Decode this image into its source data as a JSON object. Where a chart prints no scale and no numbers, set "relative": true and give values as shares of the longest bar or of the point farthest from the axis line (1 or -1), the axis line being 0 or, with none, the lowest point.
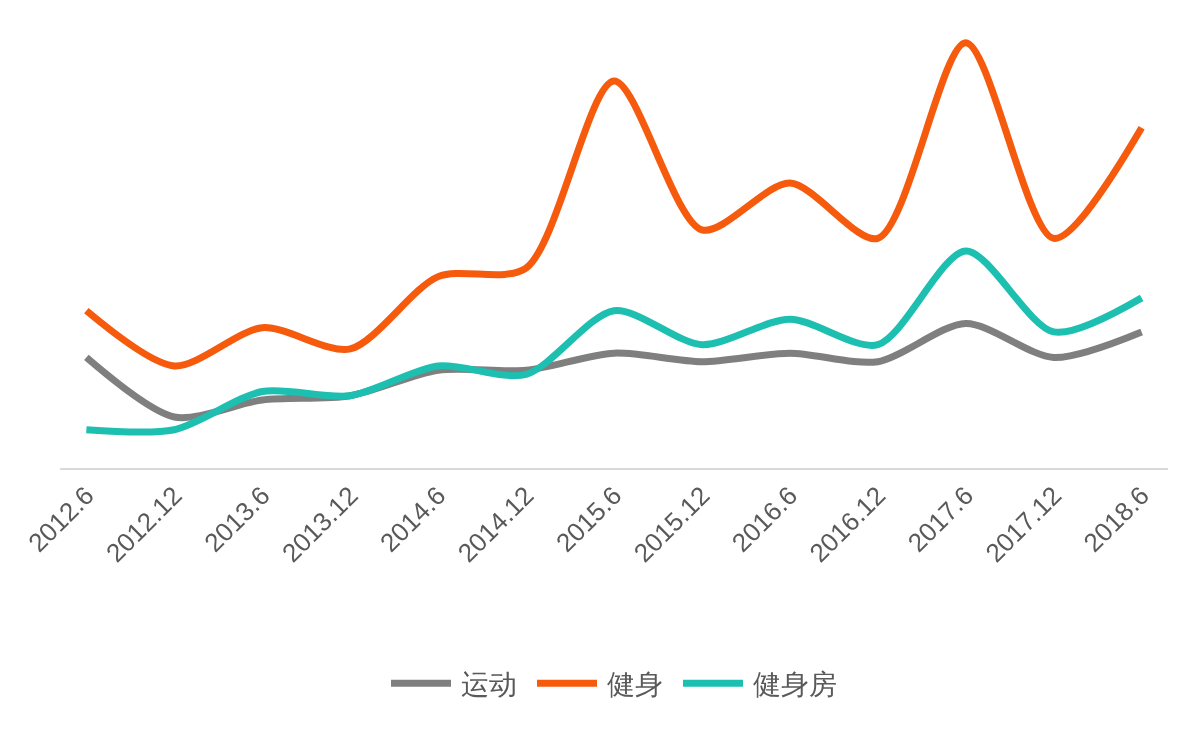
{
  "chart_data": {
    "type": "line",
    "relative": true,
    "legend": "bottom",
    "categories": [
      "2012.6",
      "2012.12",
      "2013.6",
      "2013.12",
      "2014.6",
      "2014.12",
      "2015.6",
      "2015.12",
      "2016.6",
      "2016.12",
      "2017.6",
      "2017.12",
      "2018.6"
    ],
    "series": [
      {
        "name": "运动",
        "color": "#7f7f7f",
        "values": [
          0.26,
          0.12,
          0.16,
          0.17,
          0.23,
          0.23,
          0.27,
          0.25,
          0.27,
          0.25,
          0.34,
          0.26,
          0.32
        ]
      },
      {
        "name": "健身",
        "color": "#f55a0d",
        "values": [
          0.37,
          0.24,
          0.33,
          0.28,
          0.45,
          0.47,
          0.91,
          0.56,
          0.67,
          0.54,
          1,
          0.54,
          0.8
        ]
      },
      {
        "name": "健身房",
        "color": "#1cbfb0",
        "values": [
          0.09,
          0.09,
          0.18,
          0.17,
          0.24,
          0.22,
          0.37,
          0.29,
          0.35,
          0.29,
          0.51,
          0.32,
          0.4
        ]
      }
    ]
  }
}
